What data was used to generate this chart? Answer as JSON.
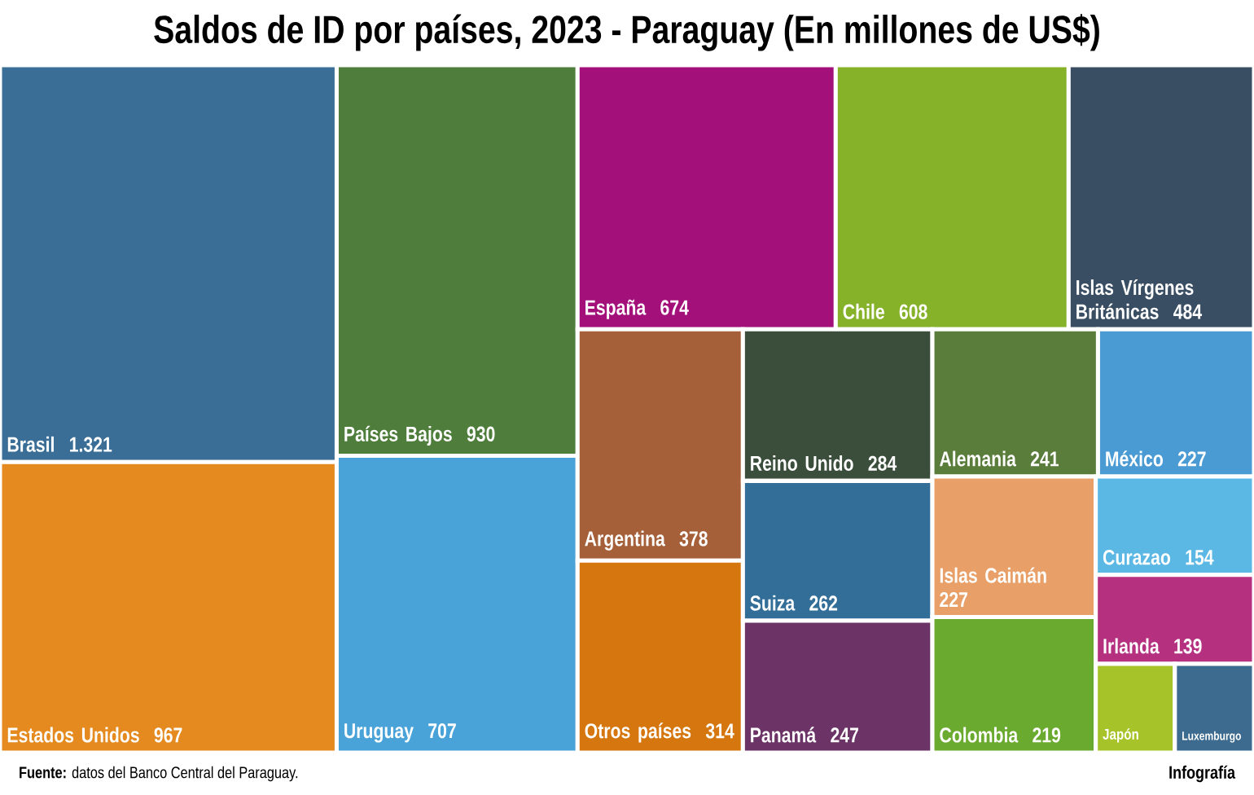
{
  "chart_data": {
    "type": "other",
    "title": "Saldos de ID por países, 2023 - Paraguay (En millones de US$)",
    "categories": [
      "Brasil",
      "Estados Unidos",
      "Países Bajos",
      "Uruguay",
      "España",
      "Chile",
      "Islas Vírgenes Británicas",
      "Argentina",
      "Otros países",
      "Reino Unido",
      "Suiza",
      "Panamá",
      "Alemania",
      "México",
      "Islas Caimán",
      "Colombia",
      "Curazao",
      "Irlanda",
      "Japón",
      "Luxemburgo"
    ],
    "values": [
      1321,
      967,
      930,
      707,
      674,
      608,
      484,
      378,
      314,
      284,
      262,
      247,
      241,
      227,
      227,
      219,
      154,
      139,
      null,
      null
    ],
    "value_labels": [
      "1.321",
      "967",
      "930",
      "707",
      "674",
      "608",
      "484",
      "378",
      "314",
      "284",
      "262",
      "247",
      "241",
      "227",
      "227",
      "219",
      "154",
      "139",
      null,
      null
    ],
    "colors": [
      "#3a6e96",
      "#e58a1f",
      "#4f7d3b",
      "#4aa3d8",
      "#a3107a",
      "#86b22a",
      "#3a4e63",
      "#a5603a",
      "#d6760f",
      "#3b4e3c",
      "#336e98",
      "#6b3366",
      "#5b7d3b",
      "#4a9ad3",
      "#e8a068",
      "#6aaa2e",
      "#5bb7e3",
      "#b5307f",
      "#a6c42a",
      "#3d6a8f"
    ],
    "annotations": [
      "**Fuente:** datos del Banco Central del Paraguay.",
      "Infografía"
    ]
  }
}
